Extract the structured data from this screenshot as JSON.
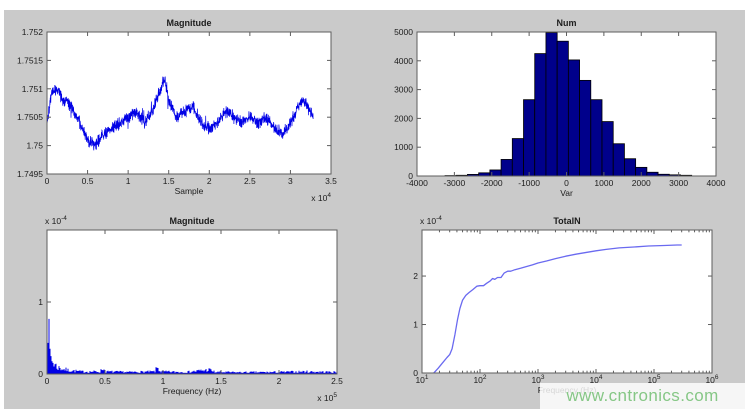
{
  "figure": {
    "background": "#CACACA",
    "axes_background": "#FFFFFF",
    "axis_color": "#5E5E5E",
    "text_color": "#1C1C1C"
  },
  "watermark": {
    "text": "www.cntronics.com",
    "color": "#86C786"
  },
  "chart_data": [
    {
      "id": "magnitude_time",
      "type": "noisy_line",
      "title": "Magnitude",
      "xlabel": "Sample",
      "x_exponent": {
        "prefix": "x 10",
        "exp": "4"
      },
      "xlim": [
        0,
        3.5
      ],
      "ylim": [
        1.7495,
        1.752
      ],
      "x_ticks": [
        {
          "v": 0,
          "l": "0"
        },
        {
          "v": 0.5,
          "l": "0.5"
        },
        {
          "v": 1,
          "l": "1"
        },
        {
          "v": 1.5,
          "l": "1.5"
        },
        {
          "v": 2,
          "l": "2"
        },
        {
          "v": 2.5,
          "l": "2.5"
        },
        {
          "v": 3,
          "l": "3"
        },
        {
          "v": 3.5,
          "l": "3.5"
        }
      ],
      "y_ticks": [
        {
          "v": 1.7495,
          "l": "1.7495"
        },
        {
          "v": 1.75,
          "l": "1.75"
        },
        {
          "v": 1.7505,
          "l": "1.7505"
        },
        {
          "v": 1.751,
          "l": "1.751"
        },
        {
          "v": 1.7515,
          "l": "1.7515"
        },
        {
          "v": 1.752,
          "l": "1.752"
        }
      ],
      "line_color": "#0000E6",
      "x_end": 3.28,
      "noise_amp": 0.00013,
      "points_count": 1400,
      "seed": 42,
      "series_trend": [
        [
          0,
          1.7504
        ],
        [
          0.05,
          1.7509
        ],
        [
          0.12,
          1.751
        ],
        [
          0.2,
          1.7508
        ],
        [
          0.3,
          1.7507
        ],
        [
          0.4,
          1.7504
        ],
        [
          0.5,
          1.7501
        ],
        [
          0.6,
          1.75
        ],
        [
          0.7,
          1.7502
        ],
        [
          0.8,
          1.7503
        ],
        [
          0.9,
          1.7504
        ],
        [
          1.0,
          1.7505
        ],
        [
          1.1,
          1.7506
        ],
        [
          1.2,
          1.7504
        ],
        [
          1.3,
          1.7506
        ],
        [
          1.4,
          1.751
        ],
        [
          1.45,
          1.7512
        ],
        [
          1.5,
          1.7508
        ],
        [
          1.6,
          1.7505
        ],
        [
          1.7,
          1.7506
        ],
        [
          1.8,
          1.7507
        ],
        [
          1.9,
          1.7504
        ],
        [
          2.0,
          1.7503
        ],
        [
          2.1,
          1.7504
        ],
        [
          2.2,
          1.7506
        ],
        [
          2.3,
          1.7505
        ],
        [
          2.4,
          1.7504
        ],
        [
          2.5,
          1.7505
        ],
        [
          2.6,
          1.7504
        ],
        [
          2.7,
          1.7505
        ],
        [
          2.8,
          1.7503
        ],
        [
          2.9,
          1.7502
        ],
        [
          3.0,
          1.7504
        ],
        [
          3.1,
          1.7507
        ],
        [
          3.15,
          1.7508
        ],
        [
          3.2,
          1.7507
        ],
        [
          3.28,
          1.7505
        ]
      ]
    },
    {
      "id": "histogram",
      "type": "bar",
      "title": "Num",
      "xlabel": "Var",
      "xlim": [
        -4000,
        4000
      ],
      "ylim": [
        0,
        5000
      ],
      "x_ticks": [
        {
          "v": -4000,
          "l": "-4000"
        },
        {
          "v": -3000,
          "l": "-3000"
        },
        {
          "v": -2000,
          "l": "-2000"
        },
        {
          "v": -1000,
          "l": "-1000"
        },
        {
          "v": 0,
          "l": "0"
        },
        {
          "v": 1000,
          "l": "1000"
        },
        {
          "v": 2000,
          "l": "2000"
        },
        {
          "v": 3000,
          "l": "3000"
        },
        {
          "v": 4000,
          "l": "4000"
        }
      ],
      "y_ticks": [
        {
          "v": 0,
          "l": "0"
        },
        {
          "v": 1000,
          "l": "1000"
        },
        {
          "v": 2000,
          "l": "2000"
        },
        {
          "v": 3000,
          "l": "3000"
        },
        {
          "v": 4000,
          "l": "4000"
        },
        {
          "v": 5000,
          "l": "5000"
        }
      ],
      "bin_width": 300,
      "categories": [
        -3100,
        -2800,
        -2500,
        -2200,
        -1900,
        -1600,
        -1300,
        -1000,
        -700,
        -400,
        -100,
        200,
        500,
        800,
        1100,
        1400,
        1700,
        2000,
        2300,
        2600,
        2900,
        3200
      ],
      "values": [
        15,
        25,
        55,
        110,
        210,
        575,
        1300,
        2650,
        4250,
        4980,
        4680,
        4030,
        3320,
        2650,
        1890,
        1120,
        600,
        300,
        130,
        60,
        40,
        25
      ],
      "bar_fill": "#00008B",
      "bar_edge": "#000000"
    },
    {
      "id": "magnitude_freq",
      "type": "spectrum",
      "title": "Magnitude",
      "xlabel": "Frequency (Hz)",
      "x_exponent": {
        "prefix": "x 10",
        "exp": "5"
      },
      "y_exponent": {
        "prefix": "x 10",
        "exp": "-4"
      },
      "xlim": [
        0,
        2.5
      ],
      "ylim": [
        0,
        2
      ],
      "x_ticks": [
        {
          "v": 0,
          "l": "0"
        },
        {
          "v": 0.5,
          "l": "0.5"
        },
        {
          "v": 1,
          "l": "1"
        },
        {
          "v": 1.5,
          "l": "1.5"
        },
        {
          "v": 2,
          "l": "2"
        },
        {
          "v": 2.5,
          "l": "2.5"
        }
      ],
      "y_ticks": [
        {
          "v": 0,
          "l": "0"
        },
        {
          "v": 1,
          "l": "1"
        }
      ],
      "line_color": "#0000E6",
      "seed": 7,
      "envelope": [
        [
          0,
          1.92
        ],
        [
          0.012,
          1.0
        ],
        [
          0.025,
          0.45
        ],
        [
          0.05,
          0.25
        ],
        [
          0.09,
          0.14
        ],
        [
          0.18,
          0.08
        ],
        [
          0.3,
          0.05
        ],
        [
          0.46,
          0.05
        ],
        [
          0.48,
          0.13
        ],
        [
          0.5,
          0.05
        ],
        [
          0.7,
          0.04
        ],
        [
          0.93,
          0.05
        ],
        [
          0.95,
          0.14
        ],
        [
          0.98,
          0.05
        ],
        [
          1.2,
          0.04
        ],
        [
          1.4,
          0.09
        ],
        [
          1.45,
          0.04
        ],
        [
          1.7,
          0.035
        ],
        [
          2.0,
          0.04
        ],
        [
          2.2,
          0.05
        ],
        [
          2.5,
          0.04
        ]
      ]
    },
    {
      "id": "totaln",
      "type": "log_line",
      "title": "TotalN",
      "xlabel": "Frequency (Hz)",
      "y_exponent": {
        "prefix": "x 10",
        "exp": "-4"
      },
      "xlim_exp": [
        1,
        6
      ],
      "ylim": [
        0,
        2.95
      ],
      "x_ticks_log": [
        {
          "exp": "1"
        },
        {
          "exp": "2"
        },
        {
          "exp": "3"
        },
        {
          "exp": "4"
        },
        {
          "exp": "5"
        },
        {
          "exp": "6"
        }
      ],
      "y_ticks": [
        {
          "v": 0,
          "l": "0"
        },
        {
          "v": 1,
          "l": "1"
        },
        {
          "v": 2,
          "l": "2"
        }
      ],
      "line_color": "#6A6AF0",
      "points": [
        [
          16,
          0
        ],
        [
          19,
          0.1
        ],
        [
          23,
          0.22
        ],
        [
          27,
          0.32
        ],
        [
          30,
          0.38
        ],
        [
          33,
          0.5
        ],
        [
          37,
          0.8
        ],
        [
          41,
          1.1
        ],
        [
          45,
          1.33
        ],
        [
          50,
          1.5
        ],
        [
          57,
          1.6
        ],
        [
          65,
          1.66
        ],
        [
          75,
          1.72
        ],
        [
          88,
          1.79
        ],
        [
          100,
          1.8
        ],
        [
          115,
          1.8
        ],
        [
          130,
          1.85
        ],
        [
          150,
          1.9
        ],
        [
          165,
          1.95
        ],
        [
          180,
          1.93
        ],
        [
          200,
          1.97
        ],
        [
          230,
          1.97
        ],
        [
          260,
          2.06
        ],
        [
          300,
          2.1
        ],
        [
          340,
          2.1
        ],
        [
          400,
          2.13
        ],
        [
          500,
          2.16
        ],
        [
          650,
          2.2
        ],
        [
          800,
          2.23
        ],
        [
          1000,
          2.27
        ],
        [
          1400,
          2.31
        ],
        [
          2000,
          2.36
        ],
        [
          3000,
          2.41
        ],
        [
          4500,
          2.45
        ],
        [
          7000,
          2.49
        ],
        [
          10000,
          2.52
        ],
        [
          15000,
          2.55
        ],
        [
          25000,
          2.58
        ],
        [
          45000,
          2.6
        ],
        [
          80000,
          2.62
        ],
        [
          150000,
          2.63
        ],
        [
          250000,
          2.64
        ],
        [
          300000,
          2.64
        ]
      ]
    }
  ]
}
